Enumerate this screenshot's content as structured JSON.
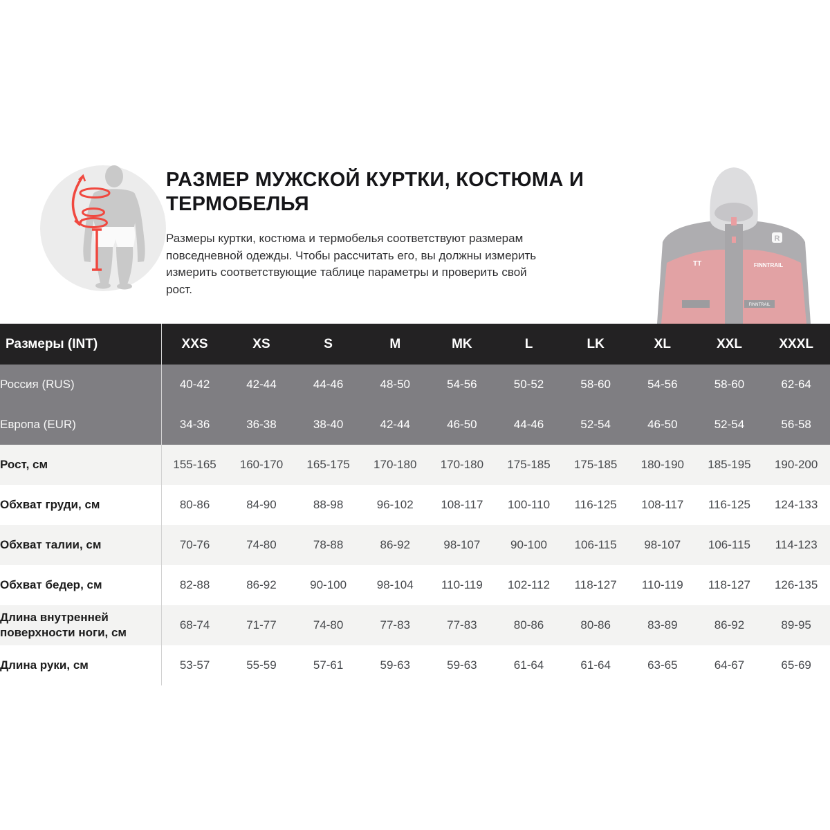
{
  "intro": {
    "title": "РАЗМЕР МУЖСКОЙ КУРТКИ, КОСТЮМА И ТЕРМОБЕЛЬЯ",
    "description_lines": [
      "Размеры куртки, костюма и термобелья соответствуют размерам",
      "повседневной одежды. Чтобы рассчитать его, вы должны измерить",
      "измерить соответствующие таблице параметры и проверить свой",
      "рост."
    ],
    "illustration": "body-measurement-diagram",
    "product_image": "hooded-jacket-photo"
  },
  "size_table": {
    "corner_label": "Размеры (INT)",
    "size_headers": [
      "XXS",
      "XS",
      "S",
      "M",
      "MK",
      "L",
      "LK",
      "XL",
      "XXL",
      "XXXL"
    ],
    "rows": [
      {
        "label": "Россия (RUS)",
        "theme": "gray",
        "values": [
          "40-42",
          "42-44",
          "44-46",
          "48-50",
          "54-56",
          "50-52",
          "58-60",
          "54-56",
          "58-60",
          "62-64"
        ]
      },
      {
        "label": "Европа (EUR)",
        "theme": "gray",
        "values": [
          "34-36",
          "36-38",
          "38-40",
          "42-44",
          "46-50",
          "44-46",
          "52-54",
          "46-50",
          "52-54",
          "56-58"
        ]
      },
      {
        "label": "Рост, см",
        "theme": "shaded",
        "values": [
          "155-165",
          "160-170",
          "165-175",
          "170-180",
          "170-180",
          "175-185",
          "175-185",
          "180-190",
          "185-195",
          "190-200"
        ]
      },
      {
        "label": "Обхват груди, см",
        "theme": "white",
        "values": [
          "80-86",
          "84-90",
          "88-98",
          "96-102",
          "108-117",
          "100-110",
          "116-125",
          "108-117",
          "116-125",
          "124-133"
        ]
      },
      {
        "label": "Обхват талии, см",
        "theme": "shaded",
        "values": [
          "70-76",
          "74-80",
          "78-88",
          "86-92",
          "98-107",
          "90-100",
          "106-115",
          "98-107",
          "106-115",
          "114-123"
        ]
      },
      {
        "label": "Обхват бедер, см",
        "theme": "white",
        "values": [
          "82-88",
          "86-92",
          "90-100",
          "98-104",
          "110-119",
          "102-112",
          "118-127",
          "110-119",
          "118-127",
          "126-135"
        ]
      },
      {
        "label": "Длина внутренней поверхности ноги, см",
        "theme": "shaded",
        "values": [
          "68-74",
          "71-77",
          "74-80",
          "77-83",
          "77-83",
          "80-86",
          "80-86",
          "83-89",
          "86-92",
          "89-95"
        ]
      },
      {
        "label": "Длина руки, см",
        "theme": "white",
        "values": [
          "53-57",
          "55-59",
          "57-61",
          "59-63",
          "59-63",
          "61-64",
          "61-64",
          "63-65",
          "64-67",
          "65-69"
        ]
      }
    ]
  },
  "colors": {
    "header_bg": "#232223",
    "gray_row_bg": "#7f7e82",
    "shaded_row_bg": "#f3f3f2",
    "divider": "#d2d2d2",
    "accent_red": "#f0483f",
    "jacket_red": "#c6474c"
  }
}
